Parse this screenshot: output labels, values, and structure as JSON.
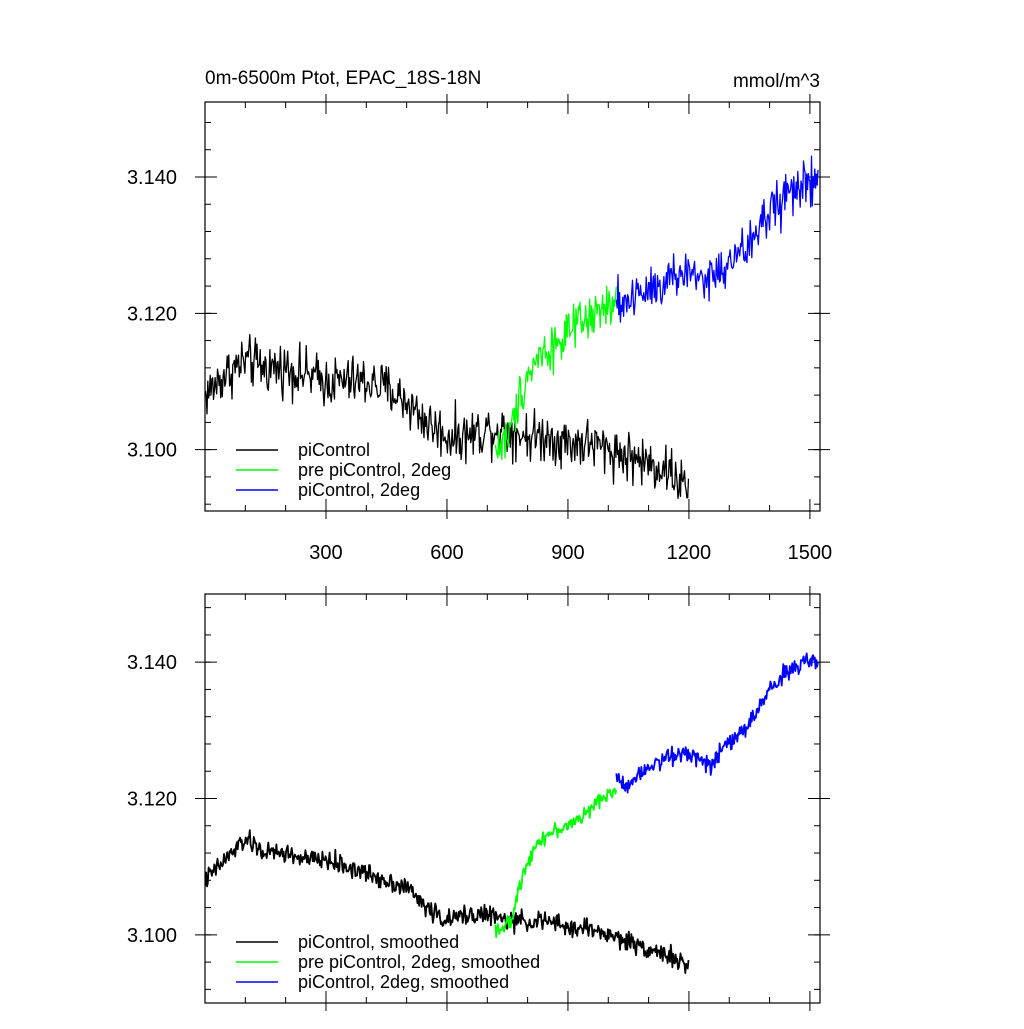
{
  "figure": {
    "title": "0m-6500m Ptot, EPAC_18S-18N",
    "units": "mmol/m^3"
  },
  "colors": {
    "black": "#000000",
    "green": "#00ff00",
    "blue": "#0000ff"
  },
  "chart_data": [
    {
      "type": "line",
      "panel": "top",
      "title": "0m-6500m Ptot, EPAC_18S-18N",
      "units": "mmol/m^3",
      "xlim": [
        0,
        1525
      ],
      "ylim": [
        3.091,
        3.151
      ],
      "xticks": [
        300,
        600,
        900,
        1200,
        1500
      ],
      "xtick_labels": [
        "300",
        "600",
        "900",
        "1200",
        "1500"
      ],
      "yticks": [
        3.1,
        3.12,
        3.14
      ],
      "ytick_labels": [
        "3.100",
        "3.120",
        "3.140"
      ],
      "grid": false,
      "legend_position": "bottom-left",
      "series": [
        {
          "name": "piControl",
          "color": "#000000",
          "x_range": [
            1,
            1200
          ],
          "anchors_x": [
            1,
            50,
            100,
            150,
            200,
            250,
            300,
            350,
            400,
            450,
            500,
            550,
            600,
            650,
            700,
            750,
            800,
            850,
            900,
            950,
            1000,
            1050,
            1100,
            1150,
            1200
          ],
          "anchors_y": [
            3.108,
            3.111,
            3.113,
            3.112,
            3.112,
            3.111,
            3.11,
            3.11,
            3.11,
            3.109,
            3.107,
            3.104,
            3.102,
            3.102,
            3.103,
            3.103,
            3.102,
            3.102,
            3.101,
            3.101,
            3.1,
            3.099,
            3.098,
            3.097,
            3.094
          ],
          "noise": 0.0028
        },
        {
          "name": "pre piControl, 2deg",
          "color": "#00ff00",
          "x_range": [
            720,
            1020
          ],
          "anchors_x": [
            720,
            740,
            760,
            780,
            800,
            830,
            860,
            900,
            950,
            1000,
            1020
          ],
          "anchors_y": [
            3.1,
            3.101,
            3.103,
            3.108,
            3.111,
            3.114,
            3.115,
            3.117,
            3.119,
            3.121,
            3.121
          ],
          "noise": 0.0025
        },
        {
          "name": "piControl, 2deg",
          "color": "#0000ff",
          "x_range": [
            1020,
            1520
          ],
          "anchors_x": [
            1020,
            1050,
            1100,
            1150,
            1200,
            1250,
            1300,
            1350,
            1400,
            1450,
            1500,
            1520
          ],
          "anchors_y": [
            3.121,
            3.122,
            3.124,
            3.125,
            3.126,
            3.125,
            3.127,
            3.13,
            3.135,
            3.138,
            3.139,
            3.139
          ],
          "noise": 0.0028
        }
      ]
    },
    {
      "type": "line",
      "panel": "bottom",
      "xlim": [
        0,
        1525
      ],
      "ylim": [
        3.09,
        3.15
      ],
      "xticks": [
        300,
        600,
        900,
        1200,
        1500
      ],
      "yticks": [
        3.1,
        3.12,
        3.14
      ],
      "ytick_labels": [
        "3.100",
        "3.120",
        "3.140"
      ],
      "grid": false,
      "legend_position": "bottom-left",
      "series": [
        {
          "name": "piControl, smoothed",
          "color": "#000000",
          "x_range": [
            1,
            1200
          ],
          "anchors_x": [
            1,
            50,
            100,
            150,
            200,
            250,
            300,
            350,
            400,
            450,
            500,
            550,
            600,
            650,
            700,
            750,
            800,
            850,
            900,
            950,
            1000,
            1050,
            1100,
            1150,
            1200
          ],
          "anchors_y": [
            3.108,
            3.111,
            3.114,
            3.112,
            3.112,
            3.111,
            3.111,
            3.11,
            3.109,
            3.108,
            3.107,
            3.104,
            3.102,
            3.103,
            3.103,
            3.102,
            3.102,
            3.102,
            3.101,
            3.101,
            3.1,
            3.099,
            3.098,
            3.097,
            3.095
          ],
          "noise": 0.0011
        },
        {
          "name": "pre piControl, 2deg, smoothed",
          "color": "#00ff00",
          "x_range": [
            720,
            1020
          ],
          "anchors_x": [
            720,
            740,
            760,
            780,
            800,
            830,
            860,
            900,
            950,
            1000,
            1020
          ],
          "anchors_y": [
            3.101,
            3.101,
            3.102,
            3.107,
            3.111,
            3.114,
            3.115,
            3.116,
            3.118,
            3.121,
            3.121
          ],
          "noise": 0.0008
        },
        {
          "name": "piControl, 2deg, smoothed",
          "color": "#0000ff",
          "x_range": [
            1020,
            1520
          ],
          "anchors_x": [
            1020,
            1050,
            1100,
            1150,
            1200,
            1250,
            1300,
            1350,
            1400,
            1450,
            1500,
            1520
          ],
          "anchors_y": [
            3.123,
            3.122,
            3.125,
            3.126,
            3.127,
            3.125,
            3.128,
            3.131,
            3.136,
            3.139,
            3.14,
            3.14
          ],
          "noise": 0.001
        }
      ]
    }
  ]
}
